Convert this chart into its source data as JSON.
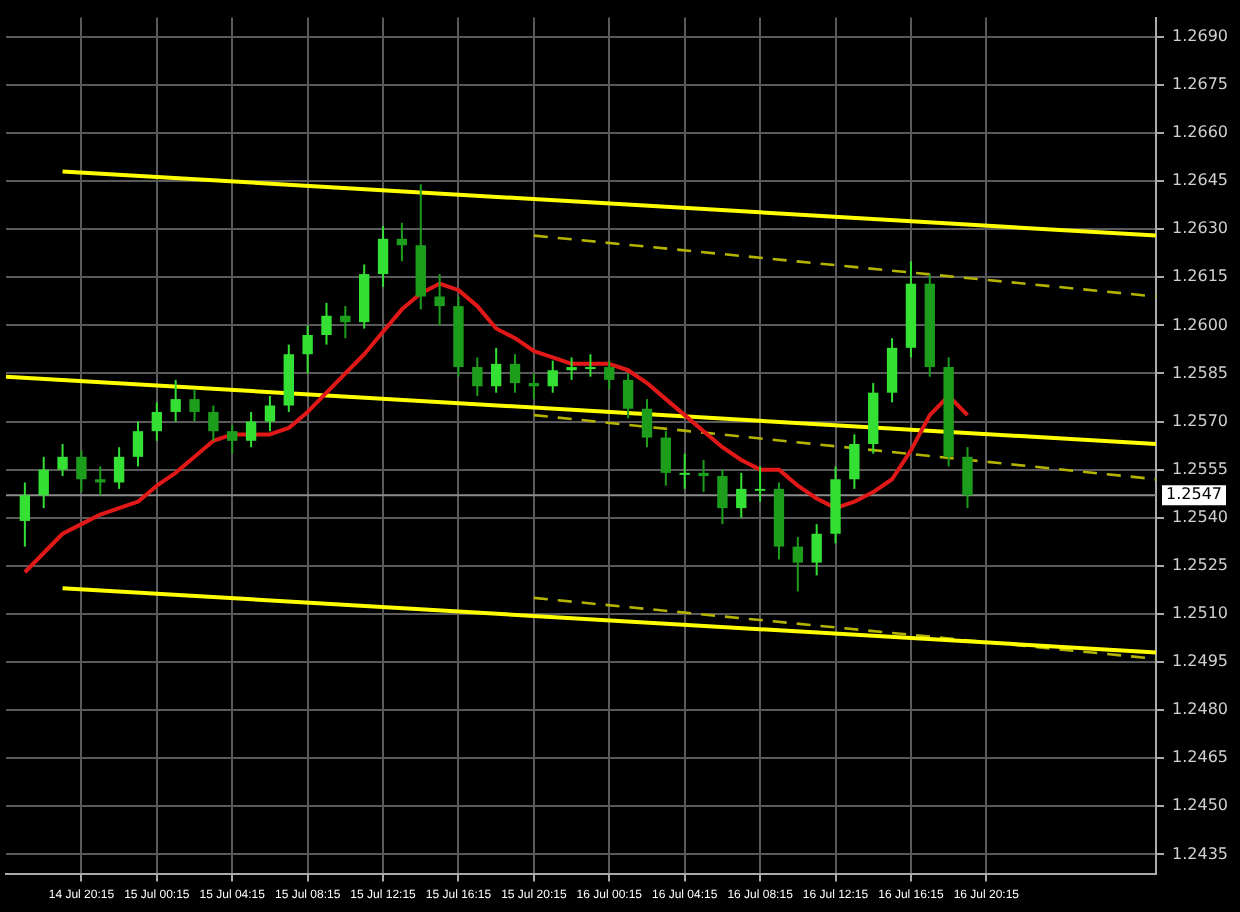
{
  "chart_data": {
    "type": "candlestick",
    "colors": [
      null,
      "#33e033",
      "#33e033",
      "#33e033",
      "#1c9e1c",
      "#1c9e1c",
      "#33e033",
      "#33e033",
      "#33e033",
      "#33e033",
      "#1c9e1c",
      "#1c9e1c",
      "#1c9e1c",
      "#33e033",
      "#33e033",
      "#33e033",
      "#33e033",
      "#33e033",
      "#1c9e1c",
      "#33e033",
      "#33e033",
      "#1c9e1c",
      "#1c9e1c",
      "#1c9e1c",
      "#1c9e1c",
      "#1c9e1c",
      "#33e033",
      "#1c9e1c",
      "#1c9e1c",
      "#33e033",
      "#33e033",
      "#33e033",
      "#1c9e1c",
      "#1c9e1c",
      "#1c9e1c",
      "#1c9e1c",
      "#33e033",
      "#1c9e1c",
      "#1c9e1c",
      "#33e033",
      "#33e033",
      "#1c9e1c",
      "#1c9e1c",
      "#33e033",
      "#33e033",
      "#33e033",
      "#33e033",
      "#33e033",
      "#33e033",
      "#1c9e1c",
      "#1c9e1c",
      "#1c9e1c",
      null,
      null,
      null,
      null,
      null,
      null,
      null,
      null,
      null,
      null
    ],
    "categories": [
      null,
      null,
      null,
      null,
      "14 Jul 20:15",
      null,
      null,
      null,
      "15 Jul 00:15",
      null,
      null,
      null,
      "15 Jul 04:15",
      null,
      null,
      null,
      "15 Jul 08:15",
      null,
      null,
      null,
      "15 Jul 12:15",
      null,
      null,
      null,
      "15 Jul 16:15",
      null,
      null,
      null,
      "15 Jul 20:15",
      null,
      null,
      null,
      "16 Jul 00:15",
      null,
      null,
      null,
      "16 Jul 04:15",
      null,
      null,
      null,
      "16 Jul 08:15",
      null,
      null,
      null,
      "16 Jul 12:15",
      null,
      null,
      null,
      "16 Jul 16:15",
      null,
      null,
      null,
      "16 Jul 20:15",
      null,
      null,
      null,
      null,
      null,
      null,
      null,
      null,
      null
    ],
    "ohlc": [
      null,
      [
        1.2539,
        1.2551,
        1.2531,
        1.2547
      ],
      [
        1.2547,
        1.2559,
        1.2543,
        1.2555
      ],
      [
        1.2555,
        1.2563,
        1.2553,
        1.2559
      ],
      [
        1.2559,
        1.2561,
        1.2548,
        1.2552
      ],
      [
        1.2552,
        1.2556,
        1.2547,
        1.2551
      ],
      [
        1.2551,
        1.2562,
        1.2549,
        1.2559
      ],
      [
        1.2559,
        1.257,
        1.2556,
        1.2567
      ],
      [
        1.2567,
        1.2576,
        1.2564,
        1.2573
      ],
      [
        1.2573,
        1.2583,
        1.257,
        1.2577
      ],
      [
        1.2577,
        1.258,
        1.257,
        1.2573
      ],
      [
        1.2573,
        1.2575,
        1.2564,
        1.2567
      ],
      [
        1.2567,
        1.2569,
        1.256,
        1.2564
      ],
      [
        1.2564,
        1.2573,
        1.2562,
        1.257
      ],
      [
        1.257,
        1.2578,
        1.2567,
        1.2575
      ],
      [
        1.2575,
        1.2594,
        1.2573,
        1.2591
      ],
      [
        1.2591,
        1.26,
        1.2585,
        1.2597
      ],
      [
        1.2597,
        1.2607,
        1.2594,
        1.2603
      ],
      [
        1.2603,
        1.2606,
        1.2596,
        1.2601
      ],
      [
        1.2601,
        1.2619,
        1.2599,
        1.2616
      ],
      [
        1.2616,
        1.2631,
        1.2612,
        1.2627
      ],
      [
        1.2627,
        1.2632,
        1.262,
        1.2625
      ],
      [
        1.2625,
        1.2644,
        1.2605,
        1.2609
      ],
      [
        1.2609,
        1.2616,
        1.26,
        1.2606
      ],
      [
        1.2606,
        1.2609,
        1.2584,
        1.2587
      ],
      [
        1.2587,
        1.259,
        1.2578,
        1.2581
      ],
      [
        1.2581,
        1.2593,
        1.2579,
        1.2588
      ],
      [
        1.2588,
        1.2591,
        1.2579,
        1.2582
      ],
      [
        1.2582,
        1.2585,
        1.2577,
        1.2581
      ],
      [
        1.2581,
        1.2589,
        1.2579,
        1.2586
      ],
      [
        1.2586,
        1.259,
        1.2583,
        1.2587
      ],
      [
        1.2587,
        1.2591,
        1.2584,
        1.2587
      ],
      [
        1.2587,
        1.2589,
        1.258,
        1.2583
      ],
      [
        1.2583,
        1.2585,
        1.2571,
        1.2574
      ],
      [
        1.2574,
        1.2577,
        1.2562,
        1.2565
      ],
      [
        1.2565,
        1.2567,
        1.255,
        1.2554
      ],
      [
        1.2554,
        1.256,
        1.2549,
        1.2554
      ],
      [
        1.2554,
        1.2558,
        1.2548,
        1.2553
      ],
      [
        1.2553,
        1.2555,
        1.2538,
        1.2543
      ],
      [
        1.2543,
        1.2554,
        1.254,
        1.2549
      ],
      [
        1.2549,
        1.2556,
        1.2545,
        1.2549
      ],
      [
        1.2549,
        1.2551,
        1.2527,
        1.2531
      ],
      [
        1.2531,
        1.2534,
        1.2517,
        1.2526
      ],
      [
        1.2526,
        1.2538,
        1.2522,
        1.2535
      ],
      [
        1.2535,
        1.2556,
        1.2532,
        1.2552
      ],
      [
        1.2552,
        1.2566,
        1.2549,
        1.2563
      ],
      [
        1.2563,
        1.2582,
        1.256,
        1.2579
      ],
      [
        1.2579,
        1.2596,
        1.2576,
        1.2593
      ],
      [
        1.2593,
        1.262,
        1.259,
        1.2613
      ],
      [
        1.2613,
        1.2616,
        1.2584,
        1.2587
      ],
      [
        1.2587,
        1.259,
        1.2556,
        1.2559
      ],
      [
        1.2559,
        1.2562,
        1.2543,
        1.2547
      ],
      null,
      null,
      null,
      null,
      null,
      null,
      null,
      null,
      null,
      null
    ],
    "series": [
      {
        "type": "line",
        "color": "#e01818",
        "values": [
          null,
          1.2523,
          1.2529,
          1.2535,
          1.2538,
          1.2541,
          1.2543,
          1.2545,
          1.255,
          1.2554,
          1.2559,
          1.2564,
          1.2566,
          1.2566,
          1.2566,
          1.2568,
          1.2573,
          1.2579,
          1.2585,
          1.2591,
          1.2598,
          1.2605,
          1.261,
          1.2613,
          1.2611,
          1.2606,
          1.2599,
          1.2596,
          1.2592,
          1.259,
          1.2588,
          1.2588,
          1.2588,
          1.2586,
          1.2582,
          1.2577,
          1.2572,
          1.2567,
          1.2562,
          1.2558,
          1.2555,
          1.2555,
          1.255,
          1.2546,
          1.2543,
          1.2545,
          1.2548,
          1.2552,
          1.2561,
          1.2572,
          1.2578,
          1.2572,
          null,
          null,
          null,
          null,
          null,
          null,
          null,
          null,
          null,
          null
        ]
      },
      {
        "type": "line",
        "color": "#ffff00",
        "line_style": "solid",
        "values": [
          null,
          null,
          null,
          1.2648,
          null,
          null,
          null,
          null,
          null,
          null,
          null,
          null,
          null,
          null,
          null,
          null,
          null,
          null,
          null,
          null,
          null,
          null,
          null,
          null,
          null,
          null,
          null,
          null,
          null,
          null,
          null,
          null,
          null,
          null,
          null,
          null,
          null,
          null,
          null,
          null,
          null,
          null,
          null,
          null,
          null,
          null,
          null,
          null,
          null,
          null,
          null,
          null,
          null,
          null,
          null,
          null,
          null,
          null,
          null,
          null,
          null,
          1.2628
        ]
      },
      {
        "type": "line",
        "color": "#ffff00",
        "line_style": "solid",
        "values": [
          1.2584,
          null,
          null,
          null,
          null,
          null,
          null,
          null,
          null,
          null,
          null,
          null,
          null,
          null,
          null,
          null,
          null,
          null,
          null,
          null,
          null,
          null,
          null,
          null,
          null,
          null,
          null,
          null,
          null,
          null,
          null,
          null,
          null,
          null,
          null,
          null,
          null,
          null,
          null,
          null,
          null,
          null,
          null,
          null,
          null,
          null,
          null,
          null,
          null,
          null,
          null,
          null,
          null,
          null,
          null,
          null,
          null,
          null,
          null,
          null,
          null,
          1.2563
        ]
      },
      {
        "type": "line",
        "color": "#ffff00",
        "line_style": "solid",
        "values": [
          null,
          null,
          null,
          1.2518,
          null,
          null,
          null,
          null,
          null,
          null,
          null,
          null,
          null,
          null,
          null,
          null,
          null,
          null,
          null,
          null,
          null,
          null,
          null,
          null,
          null,
          null,
          null,
          null,
          null,
          null,
          null,
          null,
          null,
          null,
          null,
          null,
          null,
          null,
          null,
          null,
          null,
          null,
          null,
          null,
          null,
          null,
          null,
          null,
          null,
          null,
          null,
          null,
          null,
          null,
          null,
          null,
          null,
          null,
          null,
          null,
          null,
          1.2498
        ]
      },
      {
        "type": "line",
        "color": "#b4b400",
        "line_style": "dashed",
        "values": [
          null,
          null,
          null,
          null,
          null,
          null,
          null,
          null,
          null,
          null,
          null,
          null,
          null,
          null,
          null,
          null,
          null,
          null,
          null,
          null,
          null,
          null,
          null,
          null,
          null,
          null,
          null,
          null,
          1.2628,
          null,
          null,
          null,
          null,
          null,
          null,
          null,
          null,
          null,
          null,
          null,
          null,
          null,
          null,
          null,
          null,
          null,
          null,
          null,
          null,
          null,
          null,
          null,
          null,
          null,
          null,
          null,
          null,
          null,
          null,
          null,
          null,
          1.2609
        ]
      },
      {
        "type": "line",
        "color": "#b4b400",
        "line_style": "dashed",
        "values": [
          null,
          null,
          null,
          null,
          null,
          null,
          null,
          null,
          null,
          null,
          null,
          null,
          null,
          null,
          null,
          null,
          null,
          null,
          null,
          null,
          null,
          null,
          null,
          null,
          null,
          null,
          null,
          null,
          1.2572,
          null,
          null,
          null,
          null,
          null,
          null,
          null,
          null,
          null,
          null,
          null,
          null,
          null,
          null,
          null,
          null,
          null,
          null,
          null,
          null,
          null,
          null,
          null,
          null,
          null,
          null,
          null,
          null,
          null,
          null,
          null,
          null,
          1.2552
        ]
      },
      {
        "type": "line",
        "color": "#b4b400",
        "line_style": "dashed",
        "values": [
          null,
          null,
          null,
          null,
          null,
          null,
          null,
          null,
          null,
          null,
          null,
          null,
          null,
          null,
          null,
          null,
          null,
          null,
          null,
          null,
          null,
          null,
          null,
          null,
          null,
          null,
          null,
          null,
          1.2515,
          null,
          null,
          null,
          null,
          null,
          null,
          null,
          null,
          null,
          null,
          null,
          null,
          null,
          null,
          null,
          null,
          null,
          null,
          null,
          null,
          null,
          null,
          null,
          null,
          null,
          null,
          null,
          null,
          null,
          null,
          null,
          null,
          1.2496
        ]
      }
    ],
    "ylim": [
      1.2429,
      1.2696
    ],
    "yticks": [
      {
        "value": 1.2435,
        "label": "1.2435"
      },
      {
        "value": 1.245,
        "label": "1.2450"
      },
      {
        "value": 1.2465,
        "label": "1.2465"
      },
      {
        "value": 1.248,
        "label": "1.2480"
      },
      {
        "value": 1.2495,
        "label": "1.2495"
      },
      {
        "value": 1.251,
        "label": "1.2510"
      },
      {
        "value": 1.2525,
        "label": "1.2525"
      },
      {
        "value": 1.254,
        "label": "1.2540"
      },
      {
        "value": 1.2555,
        "label": "1.2555"
      },
      {
        "value": 1.257,
        "label": "1.2570"
      },
      {
        "value": 1.2585,
        "label": "1.2585"
      },
      {
        "value": 1.26,
        "label": "1.2600"
      },
      {
        "value": 1.2615,
        "label": "1.2615"
      },
      {
        "value": 1.263,
        "label": "1.2630"
      },
      {
        "value": 1.2645,
        "label": "1.2645"
      },
      {
        "value": 1.266,
        "label": "1.2660"
      },
      {
        "value": 1.2675,
        "label": "1.2675"
      },
      {
        "value": 1.269,
        "label": "1.2690"
      }
    ],
    "grid": true,
    "ref_lines": [
      {
        "axis": "y",
        "value": 1.2547,
        "label": "1.2547",
        "color": "#8c8c8c"
      }
    ]
  }
}
